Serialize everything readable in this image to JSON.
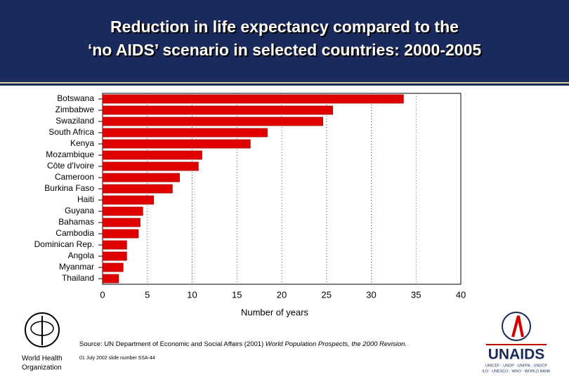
{
  "chart_data": {
    "type": "bar",
    "orientation": "horizontal",
    "title": [
      "Reduction in life expectancy compared to the",
      "‘no AIDS’ scenario in selected countries:  2000-2005"
    ],
    "categories": [
      "Botswana",
      "Zimbabwe",
      "Swaziland",
      "South Africa",
      "Kenya",
      "Mozambique",
      "Côte d'Ivoire",
      "Cameroon",
      "Burkina Faso",
      "Haiti",
      "Guyana",
      "Bahamas",
      "Cambodia",
      "Dominican Rep.",
      "Angola",
      "Myanmar",
      "Thailand"
    ],
    "values": [
      33.6,
      25.7,
      24.6,
      18.4,
      16.5,
      11.1,
      10.7,
      8.6,
      7.8,
      5.7,
      4.5,
      4.2,
      4.0,
      2.7,
      2.7,
      2.3,
      1.8
    ],
    "color": "#e00000",
    "xlim": [
      0,
      40
    ],
    "xticks": [
      0,
      5,
      10,
      15,
      20,
      25,
      30,
      35,
      40
    ],
    "grid": true,
    "xlabel": "Number of years",
    "source": {
      "text": "Source:  UN Department of Economic and Social Affairs (2001)",
      "publication": "World Population Prospects, the 2000 Revision."
    },
    "footer": "01 July 2002 slide number SSA-44"
  },
  "logos": {
    "who": [
      "World Health",
      "Organization"
    ],
    "unaids": {
      "name": "UNAIDS",
      "sponsors": [
        "UNICEF · UNDP · UNFPA · UNDCP",
        "ILO · UNESCO · WHO · WORLD BANK"
      ]
    }
  }
}
